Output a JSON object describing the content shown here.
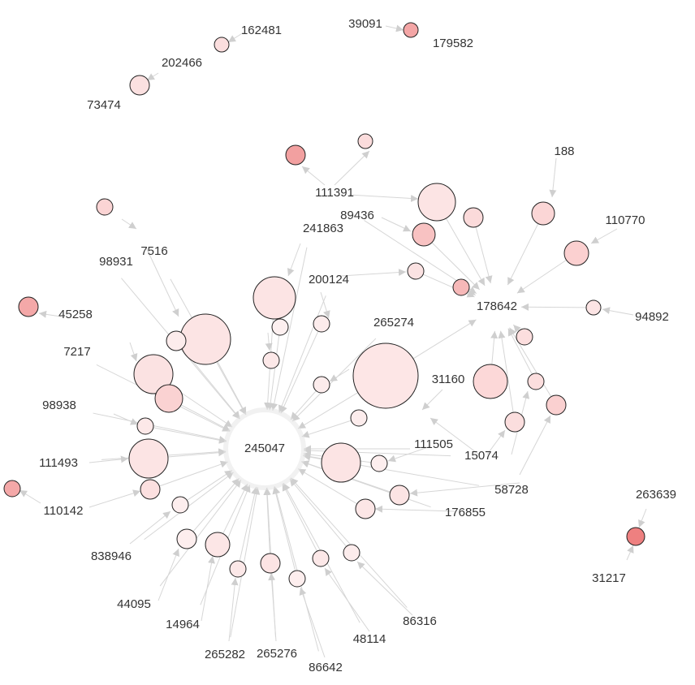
{
  "labels": [
    "162481",
    "202466",
    "73474",
    "39091",
    "179582",
    "188",
    "111391",
    "89436",
    "241863",
    "110770",
    "98931",
    "7516",
    "200124",
    "178642",
    "94892",
    "45258",
    "265274",
    "7217",
    "31160",
    "98938",
    "245047",
    "111505",
    "15074",
    "111493",
    "110142",
    "58728",
    "176855",
    "838946",
    "44095",
    "14964",
    "265282",
    "265276",
    "86642",
    "48114",
    "86316",
    "263639",
    "31217"
  ]
}
